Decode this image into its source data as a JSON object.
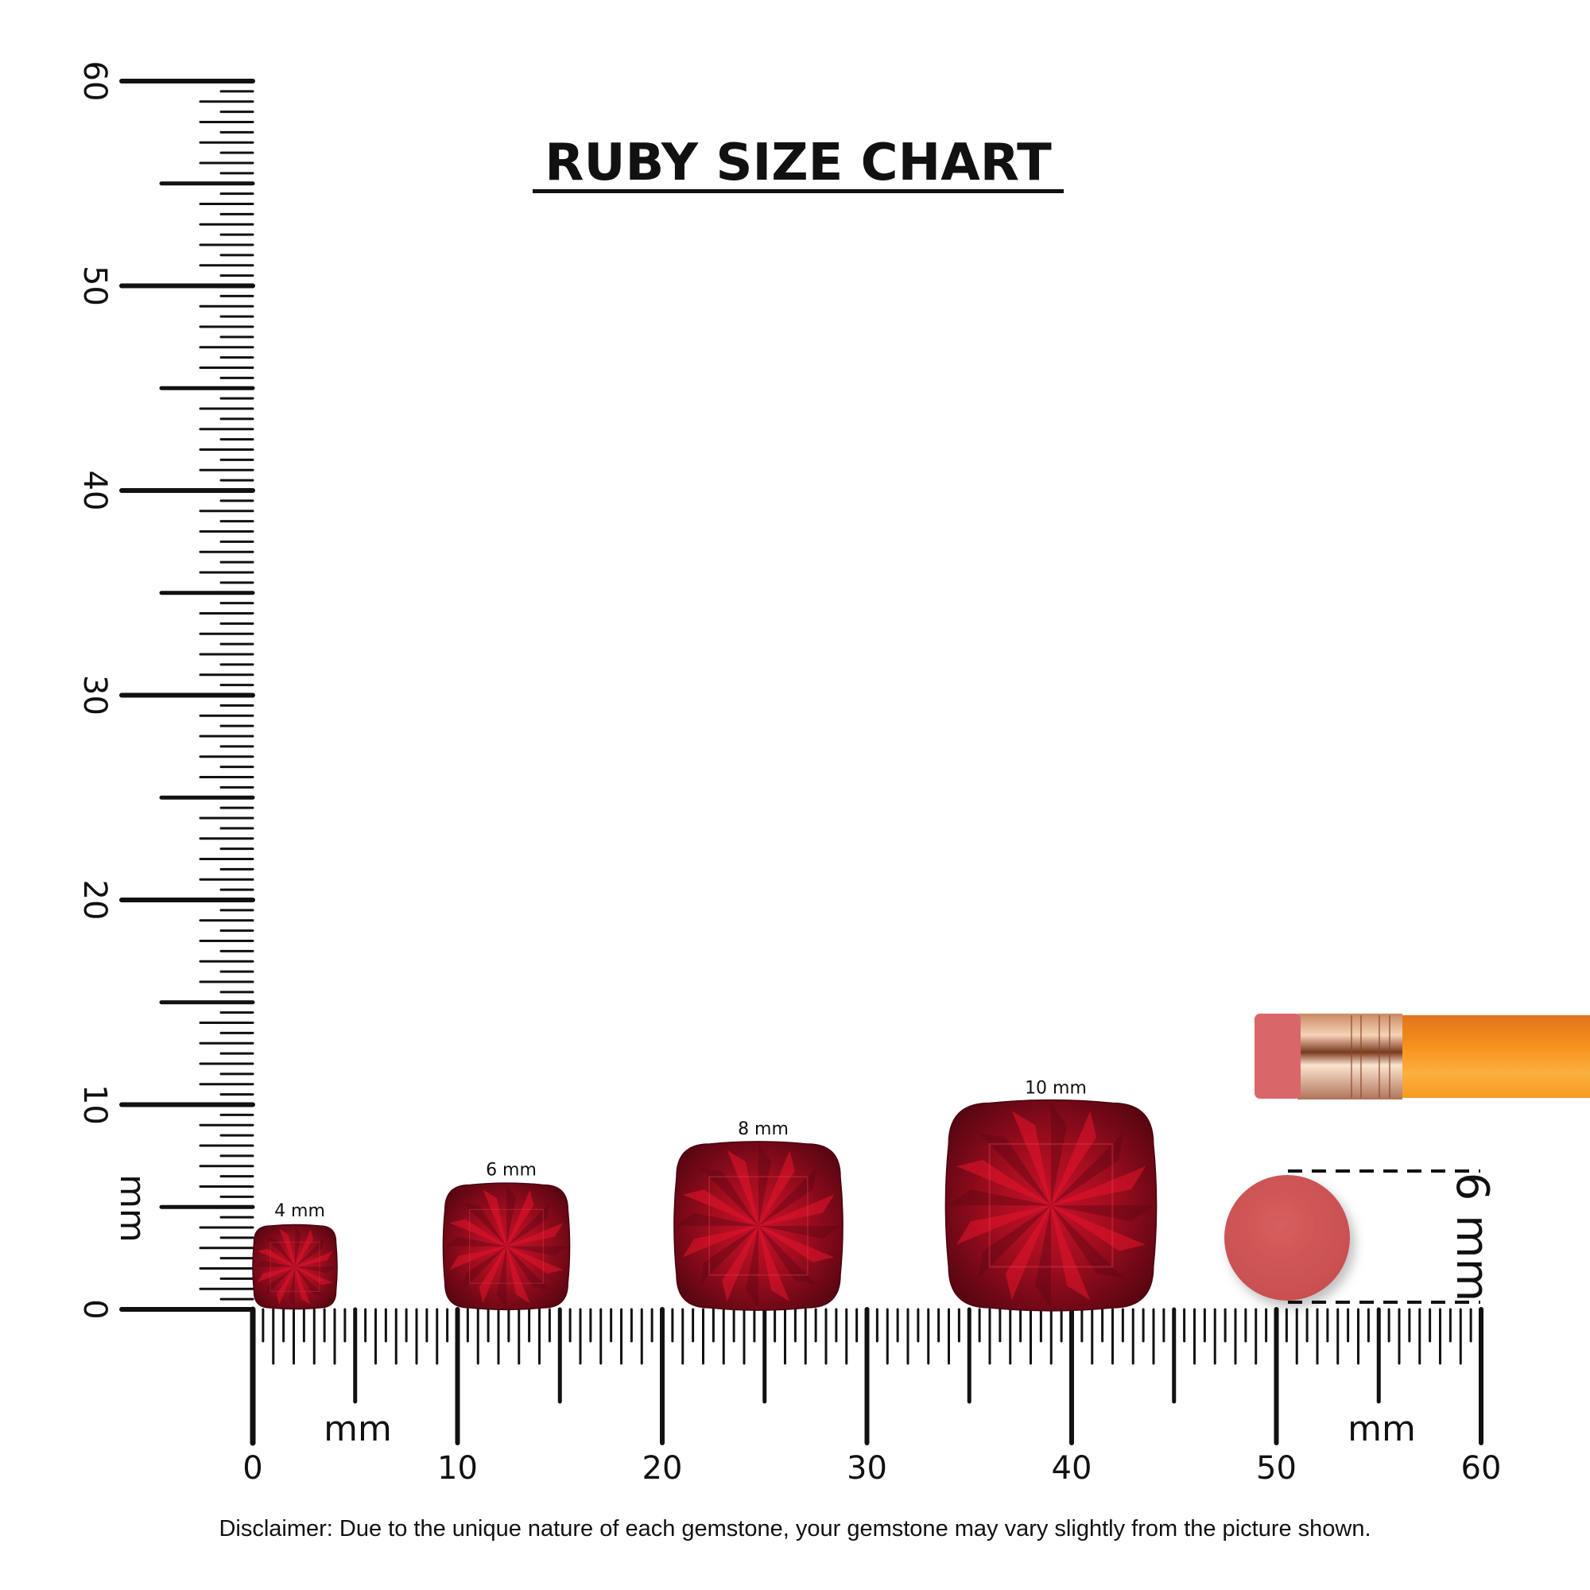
{
  "title": "RUBY SIZE CHART",
  "ruler": {
    "unit_label": "mm",
    "range_mm": [
      0,
      60
    ],
    "tick_labels": [
      "0",
      "10",
      "20",
      "30",
      "40",
      "50",
      "60"
    ],
    "minor_step_mm": 0.5
  },
  "gems": [
    {
      "label": "4 mm",
      "size_mm": 4
    },
    {
      "label": "6 mm",
      "size_mm": 6
    },
    {
      "label": "8 mm",
      "size_mm": 8
    },
    {
      "label": "10 mm",
      "size_mm": 10
    }
  ],
  "reference": {
    "label": "6 mm",
    "size_mm": 6,
    "object": "pencil-eraser"
  },
  "colors": {
    "ruby_dark": "#5e0714",
    "ruby_mid": "#a3101f",
    "ruby_bright": "#e8142c",
    "eraser": "#d35a5a",
    "pencil": "#f7931e",
    "ferrule": "#e2b08a"
  },
  "disclaimer": "Disclaimer: Due to the unique nature of each gemstone, your gemstone may vary slightly from the picture shown."
}
